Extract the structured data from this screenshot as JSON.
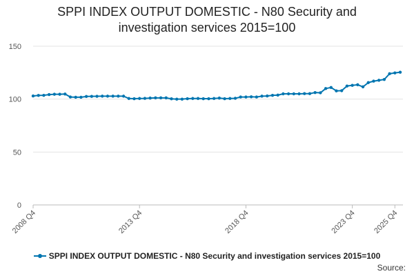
{
  "chart_data": {
    "type": "line",
    "title_line1": "SPPI INDEX OUTPUT DOMESTIC - N80 Security and",
    "title_line2": "investigation services 2015=100",
    "xlabel": "",
    "ylabel": "",
    "ylim": [
      0,
      150
    ],
    "yticks": [
      0,
      50,
      100,
      150
    ],
    "xtick_labels": [
      {
        "index": 0,
        "label": "2008 Q4"
      },
      {
        "index": 20,
        "label": "2013 Q4"
      },
      {
        "index": 40,
        "label": "2018 Q4"
      },
      {
        "index": 60,
        "label": "2023 Q4"
      },
      {
        "index": 68,
        "label": "2025 Q4"
      }
    ],
    "grid": true,
    "legend_position": "bottom",
    "series": [
      {
        "name": "SPPI INDEX OUTPUT DOMESTIC - N80 Security and investigation services 2015=100",
        "color": "#0075b0",
        "values": [
          103.0,
          103.5,
          103.6,
          104.3,
          104.6,
          104.6,
          104.8,
          102.0,
          101.8,
          101.8,
          102.5,
          102.6,
          102.7,
          102.8,
          102.8,
          102.8,
          102.8,
          102.8,
          100.6,
          100.4,
          100.6,
          100.7,
          101.0,
          101.2,
          101.2,
          101.2,
          100.3,
          100.0,
          100.0,
          100.4,
          100.6,
          100.6,
          100.4,
          100.4,
          100.6,
          101.0,
          100.4,
          100.6,
          100.8,
          102.0,
          102.0,
          102.2,
          102.0,
          102.8,
          103.0,
          103.6,
          103.8,
          105.0,
          105.0,
          105.0,
          105.0,
          105.2,
          105.2,
          106.2,
          106.0,
          110.0,
          111.0,
          107.8,
          108.0,
          112.4,
          113.0,
          113.6,
          111.6,
          115.6,
          117.0,
          117.8,
          118.6,
          124.0,
          124.8,
          125.4
        ]
      }
    ]
  },
  "legend": {
    "label": "SPPI INDEX OUTPUT DOMESTIC - N80 Security and investigation services 2015=100"
  },
  "source": {
    "label": "Source:"
  }
}
